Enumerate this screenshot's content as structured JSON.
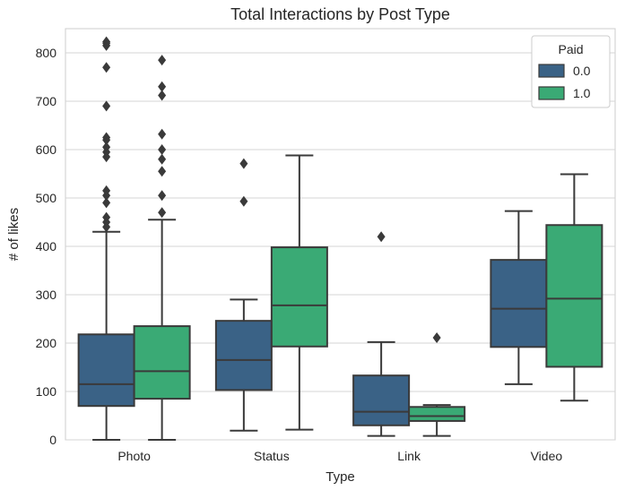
{
  "chart_data": {
    "type": "box",
    "title": "Total Interactions by Post Type",
    "xlabel": "Type",
    "ylabel": "# of likes",
    "ylim": [
      0,
      850
    ],
    "yticks": [
      0,
      100,
      200,
      300,
      400,
      500,
      600,
      700,
      800
    ],
    "grid": true,
    "categories": [
      "Photo",
      "Status",
      "Link",
      "Video"
    ],
    "legend": {
      "title": "Paid",
      "placement": "top-right",
      "entries": [
        "0.0",
        "1.0"
      ]
    },
    "series": [
      {
        "name": "0.0",
        "color": "#3a6286",
        "boxes": [
          {
            "category": "Photo",
            "whisker_low": 0,
            "q1": 70,
            "median": 115,
            "q3": 218,
            "whisker_high": 430,
            "outliers": [
              440,
              450,
              460,
              490,
              505,
              515,
              585,
              595,
              605,
              620,
              625,
              690,
              770,
              815,
              820,
              823
            ]
          },
          {
            "category": "Status",
            "whisker_low": 19,
            "q1": 103,
            "median": 165,
            "q3": 246,
            "whisker_high": 290,
            "outliers": [
              493,
              571
            ]
          },
          {
            "category": "Link",
            "whisker_low": 8,
            "q1": 30,
            "median": 58,
            "q3": 133,
            "whisker_high": 202,
            "outliers": [
              420
            ]
          },
          {
            "category": "Video",
            "whisker_low": 115,
            "q1": 192,
            "median": 271,
            "q3": 372,
            "whisker_high": 473,
            "outliers": []
          }
        ]
      },
      {
        "name": "1.0",
        "color": "#3aaa75",
        "boxes": [
          {
            "category": "Photo",
            "whisker_low": 0,
            "q1": 85,
            "median": 142,
            "q3": 235,
            "whisker_high": 455,
            "outliers": [
              470,
              505,
              555,
              580,
              600,
              632,
              712,
              730,
              785
            ]
          },
          {
            "category": "Status",
            "whisker_low": 21,
            "q1": 193,
            "median": 278,
            "q3": 398,
            "whisker_high": 588,
            "outliers": []
          },
          {
            "category": "Link",
            "whisker_low": 8,
            "q1": 39,
            "median": 49,
            "q3": 68,
            "whisker_high": 72,
            "outliers": [
              211
            ]
          },
          {
            "category": "Video",
            "whisker_low": 81,
            "q1": 151,
            "median": 292,
            "q3": 444,
            "whisker_high": 549,
            "outliers": []
          }
        ]
      }
    ]
  }
}
